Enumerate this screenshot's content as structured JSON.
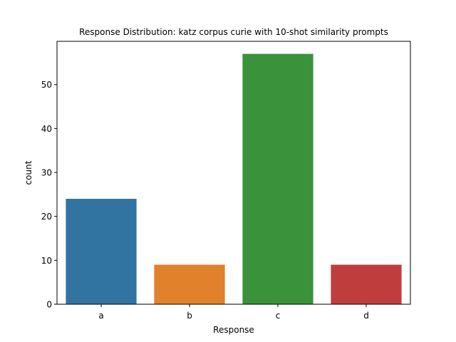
{
  "chart_data": {
    "type": "bar",
    "title": "Response Distribution: katz corpus curie with 10-shot similarity prompts",
    "xlabel": "Response",
    "ylabel": "count",
    "categories": [
      "a",
      "b",
      "c",
      "d"
    ],
    "values": [
      24,
      9,
      57,
      9
    ],
    "colors": [
      "#3274a1",
      "#e1812c",
      "#3a923a",
      "#c03d3e"
    ],
    "ylim": [
      0,
      59.85
    ],
    "yticks": [
      0,
      10,
      20,
      30,
      40,
      50
    ],
    "grid": false,
    "legend": "none"
  }
}
